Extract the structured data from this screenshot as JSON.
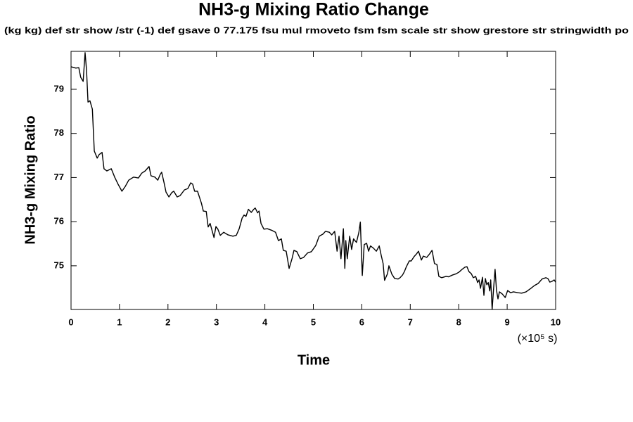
{
  "chart_data": {
    "type": "line",
    "title": "NH3-g Mixing Ratio Change",
    "subtitle": "(kg kg) def str show /str (-1) def gsave 0 77.175 fsu mul rmoveto fsm fsm scale str show grestore str stringwidth po",
    "x_label": "Time",
    "x_unit_label": "(×10⁵ s)",
    "y_label": "NH3-g Mixing Ratio",
    "xlim": [
      0,
      10
    ],
    "xticks": [
      0,
      1,
      2,
      3,
      4,
      5,
      6,
      7,
      8,
      9,
      10
    ],
    "ylim": [
      74.01,
      79.86
    ],
    "yticks": [
      75,
      76,
      77,
      78,
      79
    ],
    "color": "#000000",
    "x": [
      0,
      0.1,
      0.16,
      0.2,
      0.25,
      0.29,
      0.32,
      0.35,
      0.39,
      0.44,
      0.48,
      0.54,
      0.58,
      0.64,
      0.68,
      0.74,
      0.83,
      0.9,
      0.97,
      1.05,
      1.12,
      1.19,
      1.29,
      1.39,
      1.46,
      1.53,
      1.61,
      1.65,
      1.73,
      1.79,
      1.84,
      1.87,
      1.92,
      1.96,
      2.02,
      2.08,
      2.12,
      2.19,
      2.25,
      2.34,
      2.41,
      2.47,
      2.51,
      2.55,
      2.61,
      2.69,
      2.73,
      2.79,
      2.83,
      2.87,
      2.92,
      2.95,
      2.99,
      3.03,
      3.08,
      3.15,
      3.24,
      3.34,
      3.41,
      3.47,
      3.53,
      3.57,
      3.61,
      3.66,
      3.72,
      3.77,
      3.8,
      3.85,
      3.88,
      3.92,
      3.98,
      4.05,
      4.15,
      4.22,
      4.28,
      4.34,
      4.38,
      4.44,
      4.5,
      4.56,
      4.6,
      4.66,
      4.73,
      4.8,
      4.88,
      4.96,
      5.05,
      5.12,
      5.2,
      5.25,
      5.33,
      5.38,
      5.44,
      5.49,
      5.53,
      5.57,
      5.62,
      5.65,
      5.67,
      5.7,
      5.75,
      5.79,
      5.83,
      5.89,
      5.94,
      5.97,
      6.01,
      6.05,
      6.1,
      6.14,
      6.18,
      6.24,
      6.3,
      6.36,
      6.4,
      6.44,
      6.47,
      6.53,
      6.56,
      6.62,
      6.68,
      6.75,
      6.79,
      6.84,
      6.88,
      6.92,
      6.98,
      7.02,
      7.08,
      7.13,
      7.17,
      7.23,
      7.27,
      7.34,
      7.4,
      7.45,
      7.5,
      7.55,
      7.59,
      7.65,
      7.74,
      7.79,
      7.87,
      7.95,
      8.01,
      8.07,
      8.13,
      8.17,
      8.21,
      8.26,
      8.3,
      8.35,
      8.39,
      8.42,
      8.45,
      8.49,
      8.52,
      8.55,
      8.58,
      8.61,
      8.64,
      8.66,
      8.69,
      8.72,
      8.75,
      8.78,
      8.81,
      8.84,
      8.9,
      8.96,
      9.01,
      9.07,
      9.13,
      9.22,
      9.3,
      9.39,
      9.49,
      9.56,
      9.64,
      9.72,
      9.8,
      9.84,
      9.88,
      9.93,
      9.97,
      10.0
    ],
    "values": [
      79.51,
      79.48,
      79.49,
      79.27,
      79.18,
      79.83,
      79.43,
      78.71,
      78.74,
      78.55,
      77.6,
      77.44,
      77.52,
      77.57,
      77.2,
      77.15,
      77.2,
      77.01,
      76.85,
      76.69,
      76.8,
      76.94,
      77.01,
      76.99,
      77.1,
      77.15,
      77.25,
      77.04,
      77.01,
      76.94,
      77.07,
      77.12,
      76.88,
      76.67,
      76.56,
      76.66,
      76.69,
      76.56,
      76.59,
      76.72,
      76.75,
      76.88,
      76.85,
      76.69,
      76.69,
      76.42,
      76.24,
      76.23,
      75.88,
      75.96,
      75.76,
      75.64,
      75.89,
      75.83,
      75.69,
      75.76,
      75.7,
      75.67,
      75.69,
      75.84,
      76.08,
      76.15,
      76.12,
      76.28,
      76.21,
      76.28,
      76.31,
      76.2,
      76.24,
      75.96,
      75.83,
      75.84,
      75.8,
      75.76,
      75.57,
      75.61,
      75.35,
      75.33,
      74.94,
      75.16,
      75.35,
      75.32,
      75.16,
      75.19,
      75.29,
      75.32,
      75.46,
      75.67,
      75.72,
      75.78,
      75.76,
      75.7,
      75.78,
      75.33,
      75.67,
      75.16,
      75.84,
      74.94,
      75.57,
      75.16,
      75.67,
      75.37,
      75.61,
      75.53,
      75.76,
      75.99,
      74.78,
      75.48,
      75.51,
      75.33,
      75.45,
      75.4,
      75.33,
      75.45,
      75.24,
      75.05,
      74.67,
      74.82,
      75.0,
      74.81,
      74.71,
      74.7,
      74.73,
      74.79,
      74.87,
      74.98,
      75.11,
      75.11,
      75.21,
      75.27,
      75.33,
      75.13,
      75.22,
      75.19,
      75.27,
      75.35,
      75.05,
      75.03,
      74.76,
      74.73,
      74.76,
      74.75,
      74.79,
      74.82,
      74.86,
      74.92,
      74.97,
      74.98,
      74.87,
      74.82,
      74.73,
      74.76,
      74.62,
      74.68,
      74.49,
      74.74,
      74.33,
      74.71,
      74.57,
      74.62,
      74.43,
      74.68,
      74.01,
      74.49,
      74.92,
      74.44,
      74.25,
      74.41,
      74.36,
      74.28,
      74.44,
      74.39,
      74.41,
      74.39,
      74.38,
      74.41,
      74.49,
      74.55,
      74.6,
      74.7,
      74.73,
      74.71,
      74.63,
      74.65,
      74.68,
      74.63
    ]
  }
}
